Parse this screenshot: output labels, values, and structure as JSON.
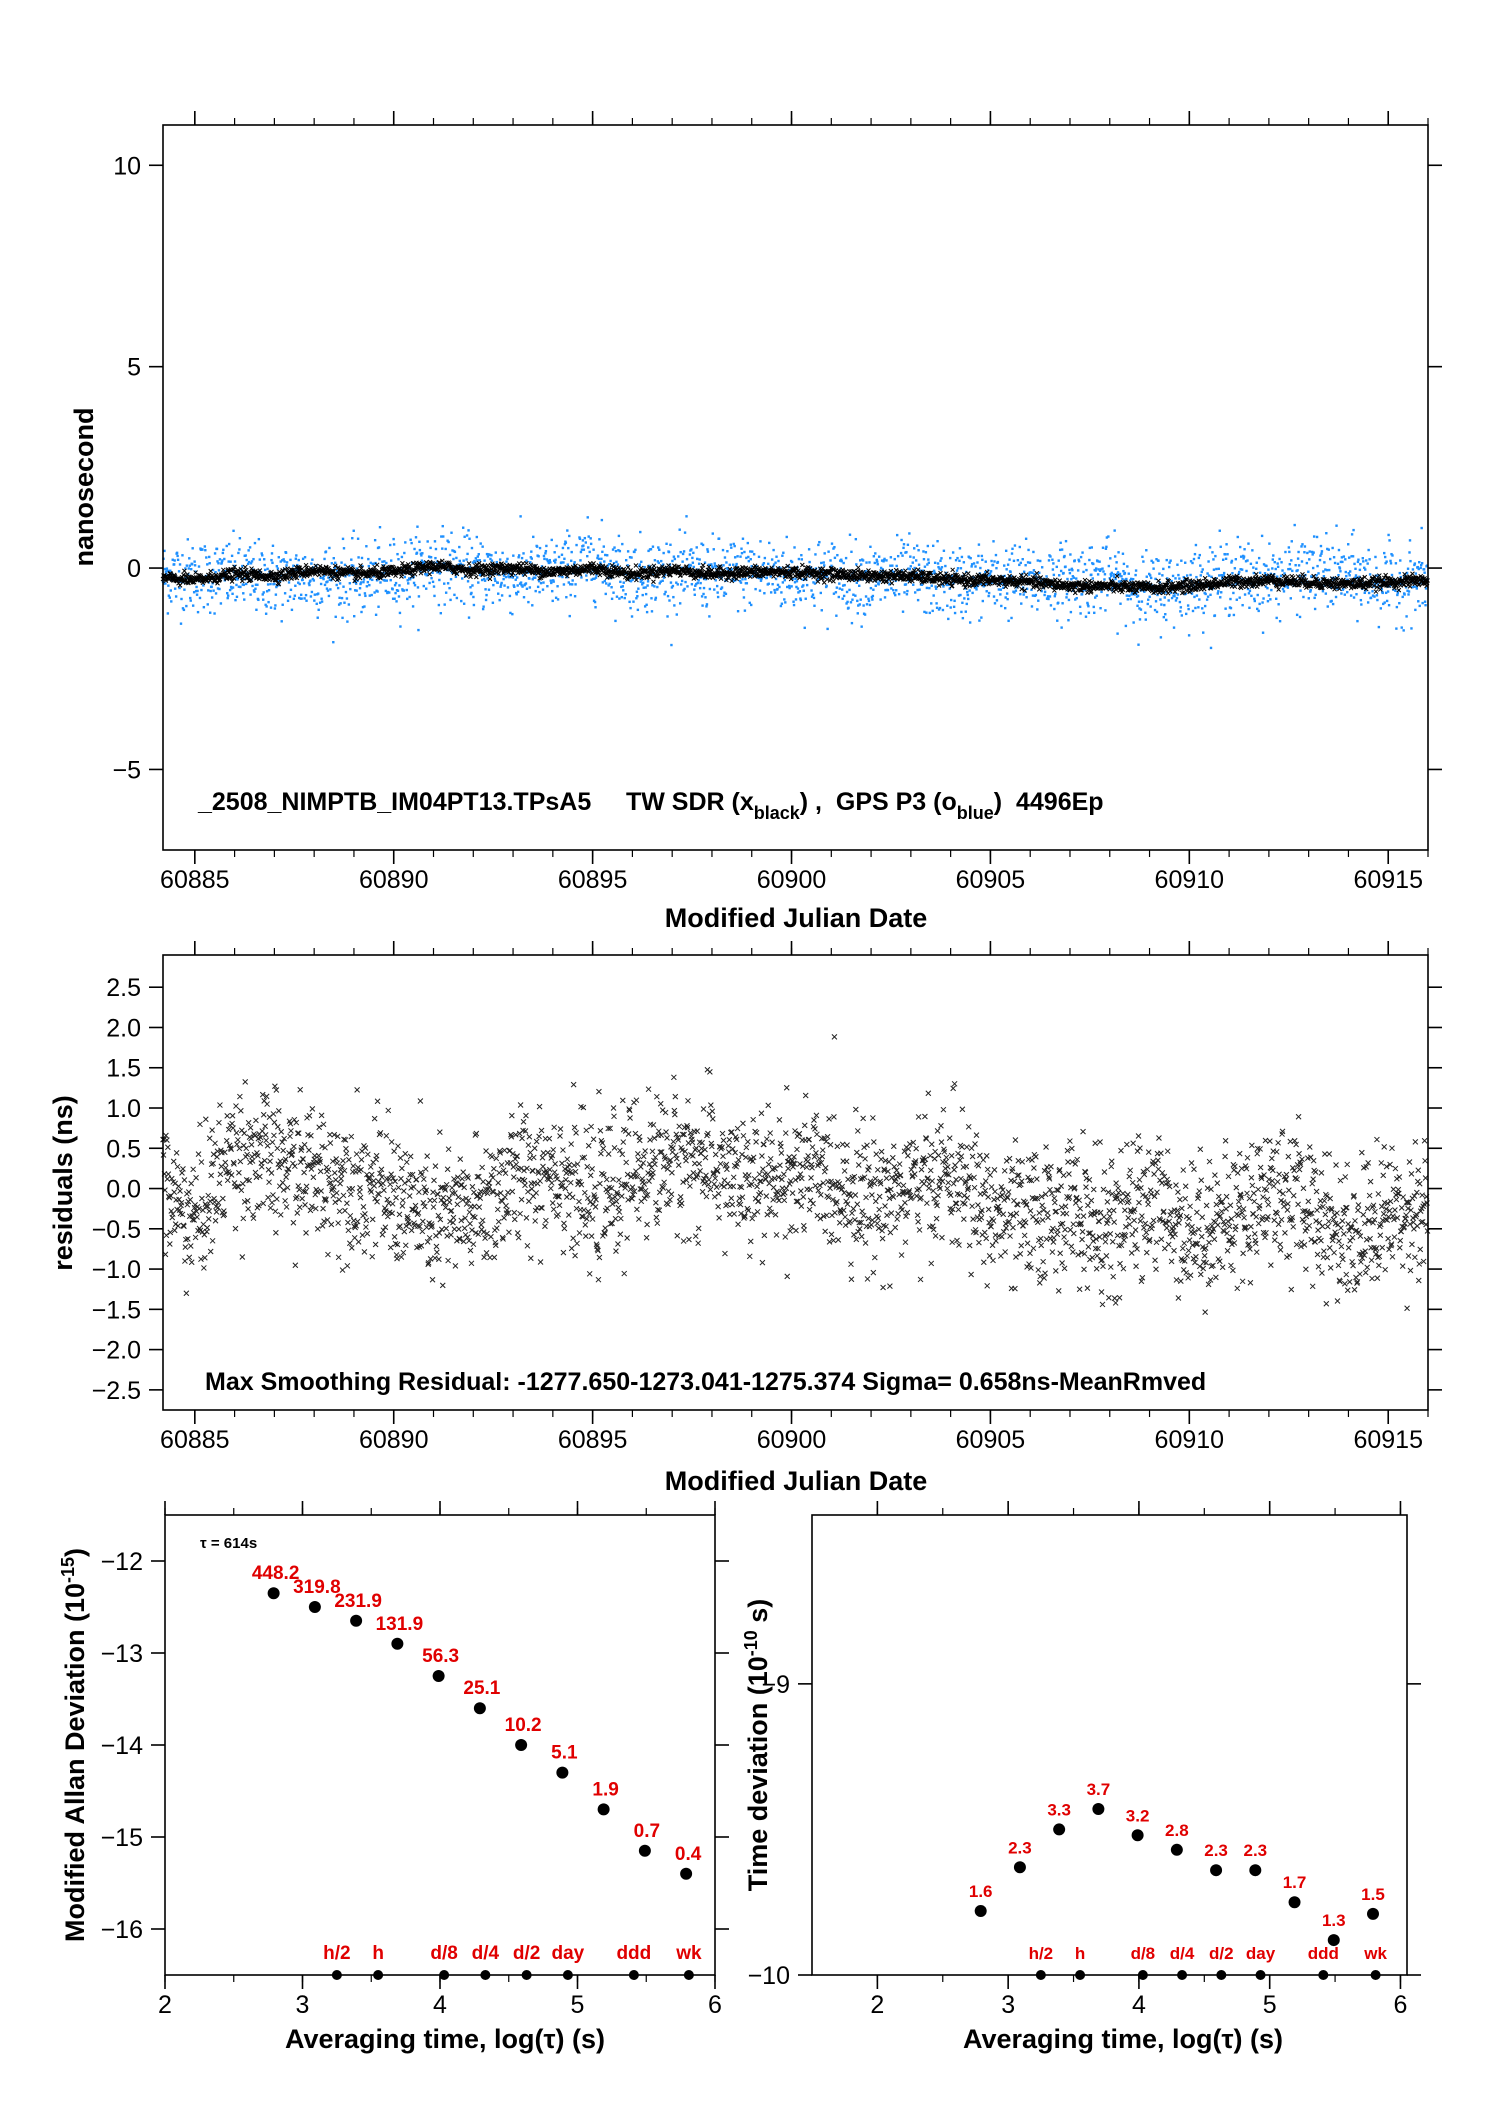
{
  "colors": {
    "black_series": "#000000",
    "blue_series": "#1e90ff",
    "labels_red": "#e00000"
  },
  "chart_data": [
    {
      "id": "panel1",
      "type": "scatter",
      "xlabel": "Modified Julian Date",
      "ylabel": "nanosecond",
      "xlim": [
        60884.2,
        60916.0
      ],
      "ylim": [
        -7,
        11
      ],
      "xticks": [
        60885,
        60890,
        60895,
        60900,
        60905,
        60910,
        60915
      ],
      "yticks": [
        -5,
        0,
        5,
        10
      ],
      "annotation": {
        "main": "_2508_NIMPTB_IM04PT13.TPsA5     TW SDR (x",
        "sub1": "black",
        "mid": ") ,  GPS P3 (o",
        "sub2": "blue",
        "tail": ")  4496Ep"
      },
      "series": [
        {
          "marker": "x",
          "color": "#000000",
          "x_range": [
            60884.2,
            60916.0
          ],
          "trend": [
            [
              60884.2,
              -0.25
            ],
            [
              60885,
              -0.3
            ],
            [
              60886,
              -0.15
            ],
            [
              60887,
              -0.2
            ],
            [
              60888,
              -0.05
            ],
            [
              60889,
              -0.15
            ],
            [
              60890,
              -0.1
            ],
            [
              60891,
              0.05
            ],
            [
              60892,
              -0.05
            ],
            [
              60893,
              0.0
            ],
            [
              60894,
              -0.1
            ],
            [
              60895,
              0.0
            ],
            [
              60896,
              -0.15
            ],
            [
              60897,
              -0.05
            ],
            [
              60898,
              -0.15
            ],
            [
              60899,
              -0.1
            ],
            [
              60900,
              -0.1
            ],
            [
              60901,
              -0.15
            ],
            [
              60902,
              -0.2
            ],
            [
              60903,
              -0.2
            ],
            [
              60904,
              -0.3
            ],
            [
              60905,
              -0.3
            ],
            [
              60906,
              -0.35
            ],
            [
              60907,
              -0.45
            ],
            [
              60908,
              -0.45
            ],
            [
              60909,
              -0.5
            ],
            [
              60910,
              -0.45
            ],
            [
              60911,
              -0.35
            ],
            [
              60912,
              -0.3
            ],
            [
              60913,
              -0.35
            ],
            [
              60914,
              -0.4
            ],
            [
              60915,
              -0.35
            ],
            [
              60916,
              -0.3
            ]
          ],
          "spread": 0.12,
          "n": 2600
        },
        {
          "marker": "dot",
          "color": "#1e90ff",
          "x_range": [
            60884.2,
            60916.0
          ],
          "trend": [
            [
              60884.2,
              -0.2
            ],
            [
              60885,
              -0.2
            ],
            [
              60886,
              -0.2
            ],
            [
              60887,
              -0.3
            ],
            [
              60888,
              -0.25
            ],
            [
              60889,
              -0.3
            ],
            [
              60890,
              -0.2
            ],
            [
              60891,
              0.1
            ],
            [
              60892,
              -0.1
            ],
            [
              60893,
              -0.2
            ],
            [
              60894,
              -0.15
            ],
            [
              60895,
              0.2
            ],
            [
              60896,
              -0.2
            ],
            [
              60897,
              -0.1
            ],
            [
              60898,
              -0.2
            ],
            [
              60899,
              -0.1
            ],
            [
              60900,
              -0.2
            ],
            [
              60901,
              -0.2
            ],
            [
              60902,
              -0.3
            ],
            [
              60903,
              -0.2
            ],
            [
              60904,
              -0.4
            ],
            [
              60905,
              -0.3
            ],
            [
              60906,
              -0.3
            ],
            [
              60907,
              -0.3
            ],
            [
              60908,
              -0.2
            ],
            [
              60909,
              -0.6
            ],
            [
              60910,
              -0.4
            ],
            [
              60911,
              -0.2
            ],
            [
              60912,
              -0.3
            ],
            [
              60913,
              -0.1
            ],
            [
              60914,
              -0.2
            ],
            [
              60915,
              -0.4
            ],
            [
              60916,
              -0.3
            ]
          ],
          "spread": 0.6,
          "n": 2600
        }
      ]
    },
    {
      "id": "panel2",
      "type": "scatter",
      "xlabel": "Modified Julian Date",
      "ylabel": "residuals (ns)",
      "xlim": [
        60884.2,
        60916.0
      ],
      "ylim": [
        -2.75,
        2.9
      ],
      "xticks": [
        60885,
        60890,
        60895,
        60900,
        60905,
        60910,
        60915
      ],
      "yticks": [
        -2.5,
        -2.0,
        -1.5,
        -1.0,
        -0.5,
        0.0,
        0.5,
        1.0,
        1.5,
        2.0,
        2.5
      ],
      "ytick_labels": [
        "−2.5",
        "−2.0",
        "−1.5",
        "−1.0",
        "−0.5",
        "0.0",
        "0.5",
        "1.0",
        "1.5",
        "2.0",
        "2.5"
      ],
      "annotation": "Max Smoothing Residual: -1277.650-1273.041-1275.374  Sigma= 0.658ns-MeanRmved",
      "series": [
        {
          "marker": "x",
          "color": "#000000",
          "sigma_ns": 0.658,
          "n": 2600,
          "trend": [
            [
              60884.2,
              0.0
            ],
            [
              60885,
              -0.4
            ],
            [
              60886,
              0.5
            ],
            [
              60887,
              0.3
            ],
            [
              60888,
              0.2
            ],
            [
              60889,
              0.1
            ],
            [
              60890,
              -0.1
            ],
            [
              60891,
              -0.4
            ],
            [
              60892,
              -0.3
            ],
            [
              60893,
              0.1
            ],
            [
              60894,
              0.3
            ],
            [
              60895,
              -0.2
            ],
            [
              60896,
              0.2
            ],
            [
              60897,
              0.4
            ],
            [
              60898,
              0.3
            ],
            [
              60899,
              0.0
            ],
            [
              60900,
              0.2
            ],
            [
              60901,
              0.1
            ],
            [
              60902,
              -0.1
            ],
            [
              60903,
              0.0
            ],
            [
              60904,
              0.2
            ],
            [
              60905,
              -0.3
            ],
            [
              60906,
              -0.4
            ],
            [
              60907,
              -0.2
            ],
            [
              60908,
              -0.6
            ],
            [
              60909,
              -0.1
            ],
            [
              60910,
              -0.5
            ],
            [
              60911,
              -0.4
            ],
            [
              60912,
              0.0
            ],
            [
              60913,
              -0.2
            ],
            [
              60914,
              -0.6
            ],
            [
              60915,
              -0.3
            ],
            [
              60916,
              -0.2
            ]
          ]
        }
      ]
    },
    {
      "id": "panel3",
      "type": "scatter",
      "xlabel": "Averaging time, log(τ) (s)",
      "ylabel": "Modified Allan Deviation (10",
      "ylabel_exp": "-15",
      "ylabel_end": ")",
      "xlim": [
        2,
        6
      ],
      "ylim": [
        -16.5,
        -11.5
      ],
      "xticks": [
        2,
        3,
        4,
        5,
        6
      ],
      "yticks": [
        -16,
        -15,
        -14,
        -13,
        -12
      ],
      "tau_note": "τ = 614s",
      "x": [
        2.79,
        3.09,
        3.39,
        3.69,
        3.99,
        4.29,
        4.59,
        4.89,
        5.19,
        5.49,
        5.79
      ],
      "y": [
        -12.35,
        -12.5,
        -12.65,
        -12.9,
        -13.25,
        -13.6,
        -14.0,
        -14.3,
        -14.7,
        -15.15,
        -15.4
      ],
      "point_labels": [
        "448.2",
        "319.8",
        "231.9",
        "131.9",
        "56.3",
        "25.1",
        "10.2",
        "5.1",
        "1.9",
        "0.7",
        "0.4"
      ],
      "markers": {
        "x": [
          3.25,
          3.55,
          4.03,
          4.33,
          4.63,
          4.93,
          5.41,
          5.81
        ],
        "labels": [
          "h/2",
          "h",
          "d/8",
          "d/4",
          "d/2",
          "day",
          "ddd",
          "wk"
        ]
      }
    },
    {
      "id": "panel4",
      "type": "scatter",
      "xlabel": "Averaging time, log(τ) (s)",
      "ylabel": "Time deviation (10",
      "ylabel_exp": "-10",
      "ylabel_end": " s)",
      "xlim": [
        1.5,
        6.05
      ],
      "ylim": [
        -10,
        -8.42
      ],
      "xticks": [
        2,
        3,
        4,
        5,
        6
      ],
      "yticks": [
        -10,
        -9
      ],
      "x": [
        2.79,
        3.09,
        3.39,
        3.69,
        3.99,
        4.29,
        4.59,
        4.89,
        5.19,
        5.49,
        5.79
      ],
      "y": [
        -9.78,
        -9.63,
        -9.5,
        -9.43,
        -9.52,
        -9.57,
        -9.64,
        -9.64,
        -9.75,
        -9.88,
        -9.79
      ],
      "point_labels": [
        "1.6",
        "2.3",
        "3.3",
        "3.7",
        "3.2",
        "2.8",
        "2.3",
        "2.3",
        "1.7",
        "1.3",
        "1.5"
      ],
      "markers": {
        "x": [
          3.25,
          3.55,
          4.03,
          4.33,
          4.63,
          4.93,
          5.41,
          5.81
        ],
        "labels": [
          "h/2",
          "h",
          "d/8",
          "d/4",
          "d/2",
          "day",
          "ddd",
          "wk"
        ]
      }
    }
  ]
}
